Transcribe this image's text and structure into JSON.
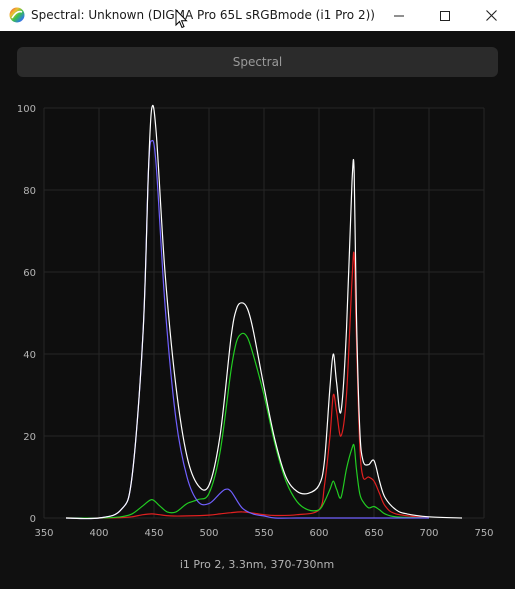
{
  "window": {
    "title": "Spectral: Unknown (DIGMA Pro 65L sRGBmode (i1 Pro 2))",
    "icon": "rainbow-circle-icon",
    "controls": [
      "minimize-icon",
      "maximize-icon",
      "close-icon"
    ]
  },
  "tab": {
    "label": "Spectral"
  },
  "chart_data": {
    "type": "line",
    "xlabel": "i1 Pro 2, 3.3nm, 370-730nm",
    "ylabel": "",
    "xlim": [
      350,
      750
    ],
    "ylim": [
      0,
      100
    ],
    "xticks": [
      350,
      400,
      450,
      500,
      550,
      600,
      650,
      700,
      750
    ],
    "yticks": [
      0,
      20,
      40,
      60,
      80,
      100
    ],
    "grid": true,
    "legend": "none",
    "series": [
      {
        "color": "#ffffff",
        "x": [
          370,
          400,
          420,
          430,
          440,
          445,
          448,
          452,
          460,
          470,
          480,
          490,
          500,
          510,
          520,
          525,
          530,
          535,
          540,
          550,
          560,
          570,
          580,
          590,
          600,
          605,
          610,
          613,
          616,
          620,
          625,
          630,
          632,
          634,
          637,
          640,
          645,
          650,
          655,
          660,
          670,
          680,
          700,
          730
        ],
        "y": [
          0,
          0,
          2,
          10,
          45,
          85,
          100,
          94,
          60,
          32,
          15,
          8,
          8,
          20,
          44,
          51,
          52.5,
          51,
          46,
          32,
          19,
          10,
          6.5,
          6,
          8,
          14,
          32,
          40,
          33,
          26,
          46,
          82,
          84,
          50,
          22,
          14,
          13,
          14,
          9,
          5,
          2,
          1,
          0.3,
          0
        ]
      },
      {
        "color": "#7060ff",
        "x": [
          370,
          400,
          420,
          430,
          440,
          445,
          448,
          452,
          460,
          470,
          480,
          490,
          500,
          510,
          515,
          520,
          530,
          540,
          550,
          560,
          580,
          600,
          620,
          640,
          660,
          700
        ],
        "y": [
          0,
          0,
          2,
          10,
          45,
          85,
          92,
          86,
          52,
          24,
          10,
          4,
          3.5,
          6,
          7,
          6.5,
          2.5,
          1,
          0.5,
          0,
          0,
          0,
          0,
          0,
          0,
          0
        ]
      },
      {
        "color": "#22cc22",
        "x": [
          370,
          400,
          420,
          430,
          440,
          448,
          455,
          462,
          470,
          480,
          490,
          500,
          510,
          520,
          525,
          530,
          535,
          540,
          550,
          560,
          570,
          580,
          590,
          600,
          605,
          610,
          613,
          616,
          620,
          625,
          630,
          632,
          634,
          637,
          640,
          645,
          650,
          655,
          660,
          670,
          700
        ],
        "y": [
          0,
          0,
          0.3,
          1,
          3,
          4.5,
          3,
          1.5,
          1.5,
          3.5,
          4.5,
          6,
          16,
          36,
          43,
          45,
          44,
          40,
          30,
          18,
          9,
          4,
          2,
          2,
          4,
          7,
          9,
          7,
          5,
          12,
          17,
          17.5,
          12,
          6,
          4,
          2.5,
          2.8,
          2,
          1,
          0.3,
          0
        ]
      },
      {
        "color": "#e02020",
        "x": [
          370,
          400,
          420,
          430,
          440,
          448,
          455,
          465,
          480,
          500,
          510,
          520,
          530,
          540,
          550,
          560,
          580,
          600,
          605,
          610,
          613,
          616,
          620,
          625,
          630,
          632,
          634,
          637,
          640,
          645,
          650,
          655,
          660,
          670,
          700
        ],
        "y": [
          0,
          0,
          0.1,
          0.3,
          0.8,
          1,
          0.8,
          0.5,
          0.5,
          0.7,
          1,
          1.3,
          1.5,
          1.2,
          0.8,
          0.6,
          0.8,
          2,
          8,
          20,
          30,
          26,
          20,
          30,
          58,
          64,
          44,
          18,
          10,
          10,
          9,
          6,
          3,
          1,
          0
        ]
      }
    ]
  }
}
